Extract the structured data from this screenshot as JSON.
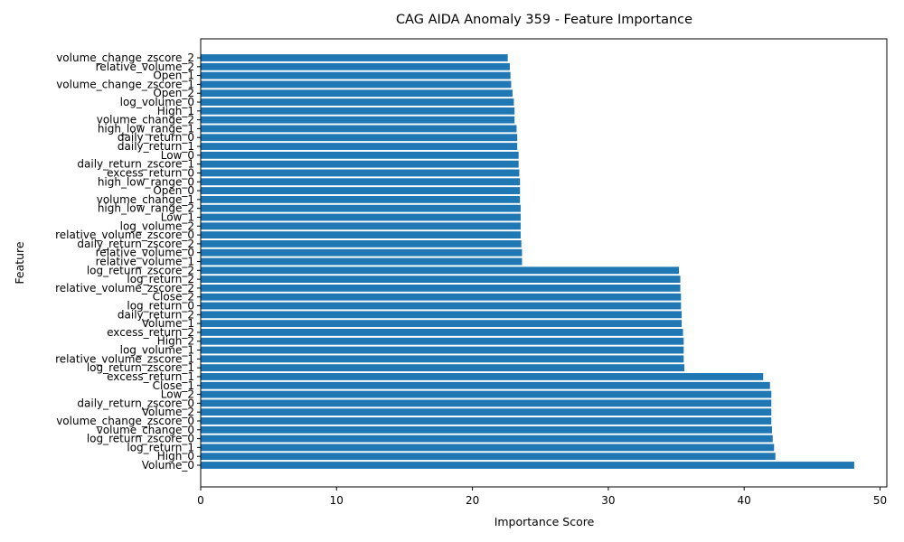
{
  "chart_data": {
    "type": "bar",
    "orientation": "horizontal",
    "title": "CAG AIDA Anomaly 359 - Feature Importance",
    "xlabel": "Importance Score",
    "ylabel": "Feature",
    "xlim": [
      0,
      50.5
    ],
    "xticks": [
      0,
      10,
      20,
      30,
      40,
      50
    ],
    "grid": false,
    "bar_color": "#1f77b4",
    "categories": [
      "Volume_0",
      "High_0",
      "log_return_1",
      "log_return_zscore_0",
      "volume_change_0",
      "volume_change_zscore_0",
      "Volume_2",
      "daily_return_zscore_0",
      "Low_2",
      "Close_1",
      "excess_return_1",
      "log_return_zscore_1",
      "relative_volume_zscore_1",
      "log_volume_1",
      "High_2",
      "excess_return_2",
      "Volume_1",
      "daily_return_2",
      "log_return_0",
      "Close_2",
      "relative_volume_zscore_2",
      "log_return_2",
      "log_return_zscore_2",
      "relative_volume_1",
      "relative_volume_0",
      "daily_return_zscore_2",
      "relative_volume_zscore_0",
      "log_volume_2",
      "Low_1",
      "high_low_range_2",
      "volume_change_1",
      "Open_0",
      "high_low_range_0",
      "excess_return_0",
      "daily_return_zscore_1",
      "Low_0",
      "daily_return_1",
      "daily_return_0",
      "high_low_range_1",
      "volume_change_2",
      "High_1",
      "log_volume_0",
      "Open_2",
      "volume_change_zscore_1",
      "Open_1",
      "relative_volume_2",
      "volume_change_zscore_2"
    ],
    "values": [
      48.1,
      42.3,
      42.2,
      42.1,
      42.05,
      42.0,
      42.0,
      42.0,
      42.0,
      41.9,
      41.4,
      35.6,
      35.55,
      35.55,
      35.55,
      35.5,
      35.4,
      35.4,
      35.35,
      35.35,
      35.3,
      35.3,
      35.2,
      23.65,
      23.65,
      23.6,
      23.55,
      23.55,
      23.55,
      23.55,
      23.5,
      23.5,
      23.5,
      23.45,
      23.4,
      23.4,
      23.3,
      23.3,
      23.25,
      23.1,
      23.1,
      23.05,
      22.95,
      22.85,
      22.8,
      22.75,
      22.6
    ]
  }
}
